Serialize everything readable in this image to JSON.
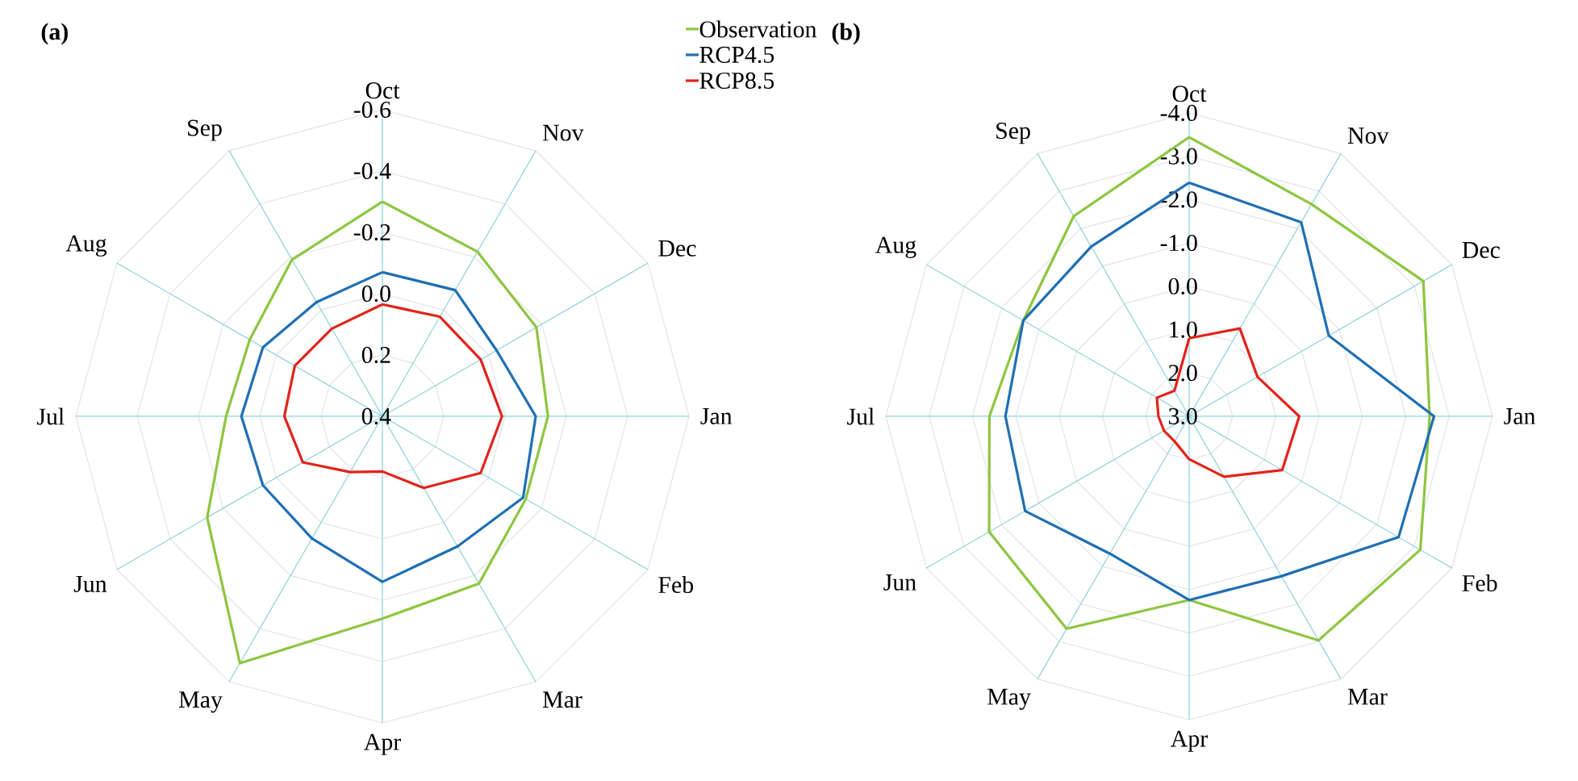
{
  "chart_data": [
    {
      "type": "radar",
      "title": "(a)",
      "categories": [
        "Oct",
        "Nov",
        "Dec",
        "Jan",
        "Feb",
        "Mar",
        "Apr",
        "May",
        "Jun",
        "Jul",
        "Aug",
        "Sep"
      ],
      "ylim": [
        0.4,
        -0.6
      ],
      "yticks": [
        0.4,
        0.2,
        {
          "value": 0,
          "label": "0.0"
        },
        -0.2,
        -0.4,
        -0.6
      ],
      "grid": true,
      "legend": "top right",
      "series": [
        {
          "name": "Observation",
          "color": "#8dc63f",
          "values": [
            -0.3,
            -0.22,
            -0.18,
            -0.14,
            -0.14,
            -0.23,
            -0.26,
            -0.53,
            -0.26,
            -0.11,
            -0.1,
            -0.19
          ]
        },
        {
          "name": "RCP4.5",
          "color": "#1f6fb4",
          "values": [
            -0.07,
            -0.075,
            -0.03,
            -0.1,
            -0.13,
            -0.09,
            -0.14,
            -0.06,
            -0.05,
            -0.06,
            -0.05,
            -0.03
          ]
        },
        {
          "name": "RCP8.5",
          "color": "#e2231a",
          "values": [
            0.035,
            0.025,
            0.03,
            0.01,
            0.03,
            0.13,
            0.22,
            0.19,
            0.1,
            0.08,
            0.07,
            0.07
          ]
        }
      ]
    },
    {
      "type": "radar",
      "title": "(b)",
      "categories": [
        "Oct",
        "Nov",
        "Dec",
        "Jan",
        "Feb",
        "Mar",
        "Apr",
        "May",
        "Jun",
        "Jul",
        "Aug",
        "Sep"
      ],
      "ylim": [
        3,
        -4
      ],
      "yticks": [
        {
          "value": 3,
          "label": "3.0"
        },
        {
          "value": 2,
          "label": "2.0"
        },
        {
          "value": 1,
          "label": "1.0"
        },
        {
          "value": 0,
          "label": "0.0"
        },
        {
          "value": -1,
          "label": "-1.0"
        },
        {
          "value": -2,
          "label": "-2.0"
        },
        {
          "value": -3,
          "label": "-3.0"
        },
        {
          "value": -4,
          "label": "-4.0"
        }
      ],
      "grid": true,
      "series": [
        {
          "color": "#8dc63f",
          "values": [
            -3.44,
            -2.65,
            -3.24,
            -2.55,
            -3.16,
            -2.97,
            -1.24,
            -2.66,
            -2.33,
            -1.61,
            -1.42,
            -2.33
          ]
        },
        {
          "color": "#1f6fb4",
          "values": [
            -2.39,
            -2.17,
            -0.72,
            -2.65,
            -2.58,
            -1.26,
            -1.24,
            -0.66,
            -1.37,
            -1.24,
            -1.42,
            -1.52
          ]
        },
        {
          "color": "#e2231a",
          "values": [
            1.2,
            0.66,
            1.18,
            0.46,
            0.52,
            1.39,
            2.01,
            2.33,
            2.33,
            2.29,
            2.14,
            2.32
          ]
        }
      ]
    }
  ]
}
